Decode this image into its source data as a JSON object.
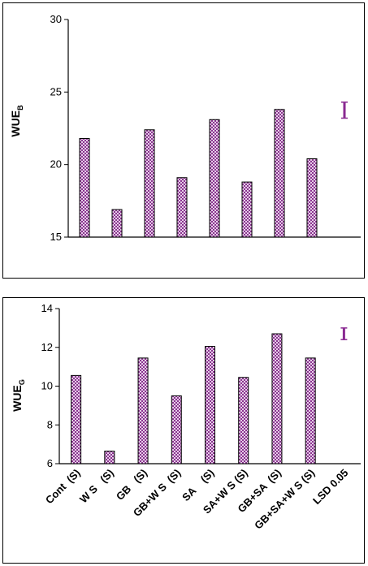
{
  "colors": {
    "bar_fill": "#a45aa8",
    "bar_light": "#e6cde8",
    "bar_dark": "#7a1f80",
    "axis": "#000000"
  },
  "chart_data": [
    {
      "type": "bar",
      "ylabel_main": "WUE",
      "ylabel_sub": "B",
      "ylim": [
        15,
        30
      ],
      "yticks": [
        "15",
        "20",
        "25",
        "30"
      ],
      "categories": [
        "Cont (S)",
        "W S (S)",
        "GB (S)",
        "GB+W S (S)",
        "SA (S)",
        "SA+W S (S)",
        "GB+SA (S)",
        "GB+SA+W S (S)",
        "LSD 0.05"
      ],
      "values": [
        21.8,
        16.9,
        22.4,
        19.1,
        23.1,
        18.8,
        23.8,
        20.4,
        null
      ],
      "lsd": {
        "center": 23.7,
        "low": 23.2,
        "high": 24.3
      }
    },
    {
      "type": "bar",
      "ylabel_main": "WUE",
      "ylabel_sub": "G",
      "ylim": [
        6,
        14
      ],
      "yticks": [
        "6",
        "8",
        "10",
        "12",
        "14"
      ],
      "categories": [
        "Cont (S)",
        "W S (S)",
        "GB (S)",
        "GB+W S (S)",
        "SA (S)",
        "SA+W S (S)",
        "GB+SA (S)",
        "GB+SA+W S (S)",
        "LSD 0.05"
      ],
      "category_labels": [
        "Cont  (S)",
        "W S   (S)",
        "GB   (S)",
        "GB+W S  (S)",
        "SA    (S)",
        "SA+W S (S)",
        "GB+SA  (S)",
        "GB+SA+W S (S)",
        "LSD 0.05"
      ],
      "values": [
        10.55,
        6.65,
        11.45,
        9.5,
        12.05,
        10.45,
        12.7,
        11.45,
        null
      ],
      "lsd": {
        "center": 12.7,
        "low": 12.4,
        "high": 13.0
      }
    }
  ]
}
